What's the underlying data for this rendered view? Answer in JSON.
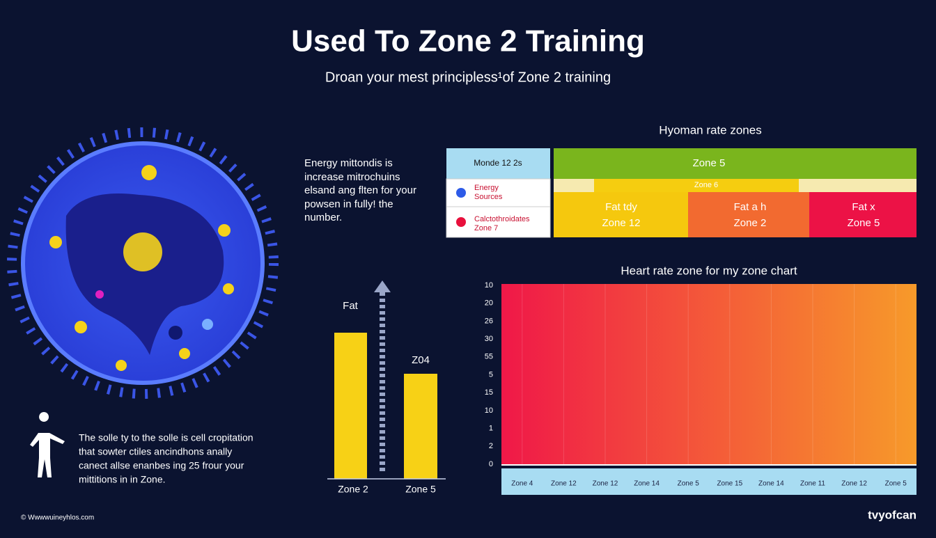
{
  "header": {
    "title": "Used To Zone 2 Training",
    "subtitle": "Droan your mest principless¹of Zone 2 training"
  },
  "intro": {
    "lines": [
      "Energy mittondis is",
      "increase mitrochuins",
      "elsand ang flten for your",
      "powsen in fully! the",
      "number."
    ]
  },
  "zones_table": {
    "title": "Hyoman rate zones",
    "legend_header": "Monde 12 2s",
    "legend": [
      {
        "lines": [
          "Energy",
          "Sources"
        ]
      },
      {
        "lines": [
          "Calctothroidates",
          "Zone 7"
        ]
      }
    ],
    "top_band": "Zone 5",
    "sub_band": "Zone 6",
    "cells": [
      [
        "Fat tdy",
        "Zone 12"
      ],
      [
        "Fat a h",
        "Zone 2"
      ],
      [
        "Fat x",
        "Zone 5"
      ]
    ]
  },
  "bar_panel": {
    "labels": [
      "Fat",
      "Z04"
    ],
    "categories": [
      "Zone 2",
      "Zone 5"
    ]
  },
  "heart_chart": {
    "title": "Heart rate zone for my zone chart",
    "y_labels": [
      "10",
      "20",
      "26",
      "30",
      "55",
      "5",
      "15",
      "10",
      "1",
      "2",
      "0"
    ],
    "x_labels": [
      "Zone 4",
      "Zone 12",
      "Zone 12",
      "Zone 14",
      "Zone 5",
      "Zone 15",
      "Zone 14",
      "Zone 11",
      "Zone 12",
      "Zone 5"
    ]
  },
  "note": {
    "lines": [
      "The solle ty to the solle is cell cropitation",
      "that sowter ctiles ancindhons anally",
      "canect allse enanbes ing 25 frour your",
      "mittitions in in Zone."
    ]
  },
  "footer": {
    "credit": "© Wwwwuineyhlos.com",
    "brand": "tvyofcan"
  }
}
